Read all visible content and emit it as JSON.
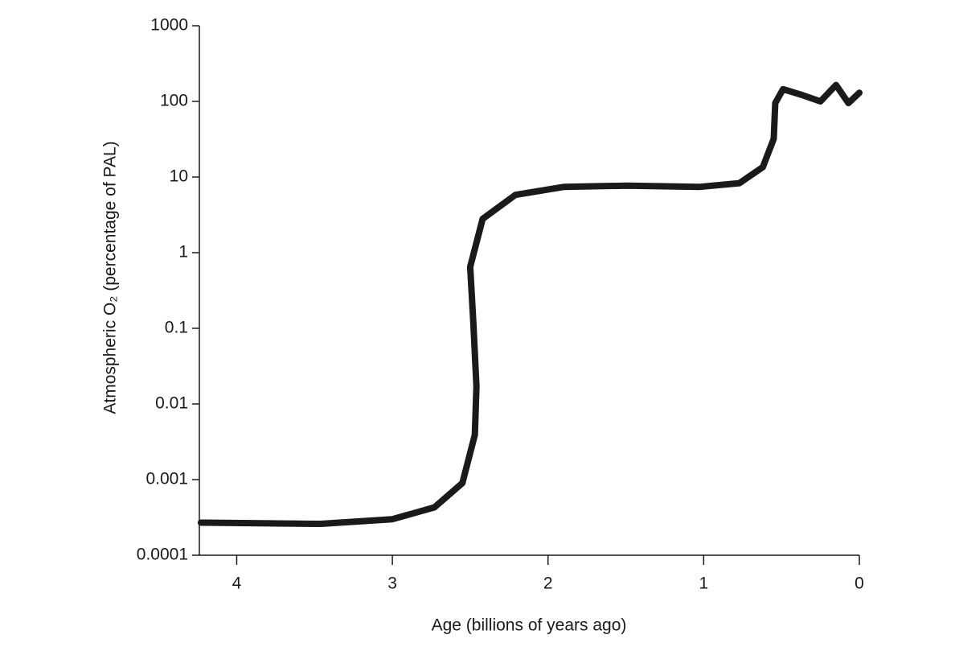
{
  "chart_data": {
    "type": "line",
    "x_label": "Age (billions of years ago)",
    "y_label": "Atmospheric O₂ (percentage of PAL)",
    "x": [
      4.23,
      3.46,
      3.0,
      2.73,
      2.55,
      2.47,
      2.46,
      2.48,
      2.5,
      2.42,
      2.21,
      1.9,
      1.49,
      1.03,
      0.77,
      0.62,
      0.55,
      0.54,
      0.49,
      0.36,
      0.25,
      0.15,
      0.07,
      0
    ],
    "series": [
      {
        "name": "Atmospheric O2",
        "color": "#1a1a1a",
        "values": [
          0.00027,
          0.00026,
          0.0003,
          0.00043,
          0.0009,
          0.0039,
          0.017,
          0.12,
          0.65,
          2.8,
          5.8,
          7.4,
          7.7,
          7.4,
          8.3,
          13.5,
          32,
          95,
          145,
          120,
          100,
          165,
          95,
          130
        ]
      }
    ],
    "xlim": [
      4.24,
      0
    ],
    "xticks": [
      4,
      3,
      2,
      1,
      0
    ],
    "ylim": [
      0.0001,
      1000
    ],
    "yticks": [
      1000,
      100,
      10,
      1,
      0.1,
      0.01,
      0.001,
      0.0001
    ],
    "yscale": "log",
    "grid": false
  }
}
